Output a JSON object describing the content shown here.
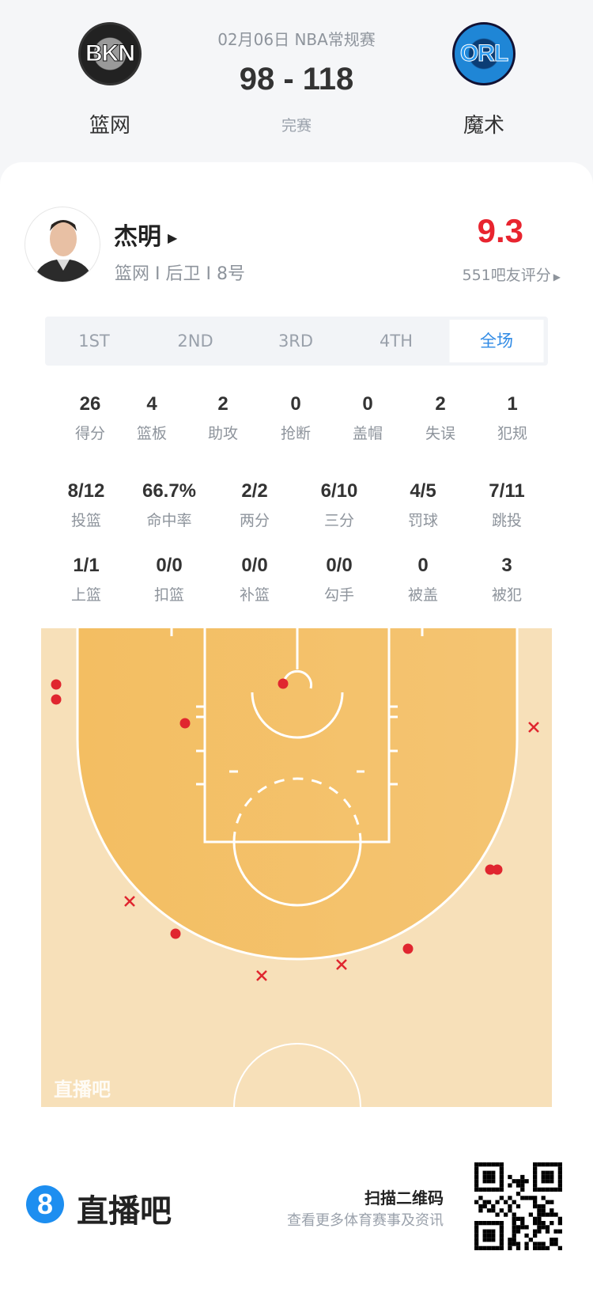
{
  "game": {
    "date_type": "02月06日 NBA常规赛",
    "score": "98 - 118",
    "status": "完赛",
    "home": {
      "name": "篮网",
      "logo_text": "BKN"
    },
    "away": {
      "name": "魔术",
      "logo_text": "ORL"
    }
  },
  "player": {
    "name": "杰明",
    "info": "篮网 I 后卫 I 8号",
    "rating": "9.3",
    "rating_count": "551吧友评分",
    "rating_color": "#e8242f"
  },
  "tabs": [
    {
      "label": "1ST"
    },
    {
      "label": "2ND"
    },
    {
      "label": "3RD"
    },
    {
      "label": "4TH"
    },
    {
      "label": "全场",
      "active": true
    }
  ],
  "stats_row1": [
    {
      "v": "26",
      "l": "得分"
    },
    {
      "v": "4",
      "l": "篮板"
    },
    {
      "v": "2",
      "l": "助攻"
    },
    {
      "v": "0",
      "l": "抢断"
    },
    {
      "v": "0",
      "l": "盖帽"
    },
    {
      "v": "2",
      "l": "失误"
    },
    {
      "v": "1",
      "l": "犯规"
    }
  ],
  "stats_row2": [
    {
      "v": "8/12",
      "l": "投篮"
    },
    {
      "v": "66.7%",
      "l": "命中率"
    },
    {
      "v": "2/2",
      "l": "两分"
    },
    {
      "v": "6/10",
      "l": "三分"
    },
    {
      "v": "4/5",
      "l": "罚球"
    },
    {
      "v": "7/11",
      "l": "跳投"
    }
  ],
  "stats_row3": [
    {
      "v": "1/1",
      "l": "上篮"
    },
    {
      "v": "0/0",
      "l": "扣篮"
    },
    {
      "v": "0/0",
      "l": "补篮"
    },
    {
      "v": "0/0",
      "l": "勾手"
    },
    {
      "v": "0",
      "l": "被盖"
    },
    {
      "v": "3",
      "l": "被犯"
    }
  ],
  "shot_chart": {
    "watermark": "直播吧",
    "made_color": "#e0262f",
    "shots": [
      {
        "result": "made"
      },
      {
        "result": "made"
      },
      {
        "result": "made"
      },
      {
        "result": "made"
      },
      {
        "result": "made"
      },
      {
        "result": "made"
      },
      {
        "result": "made"
      },
      {
        "result": "made"
      },
      {
        "result": "missed"
      },
      {
        "result": "missed"
      },
      {
        "result": "missed"
      },
      {
        "result": "missed"
      }
    ]
  },
  "footer": {
    "brand_badge": "8",
    "brand": "直播吧",
    "scan": "扫描二维码",
    "sub": "查看更多体育赛事及资讯"
  }
}
